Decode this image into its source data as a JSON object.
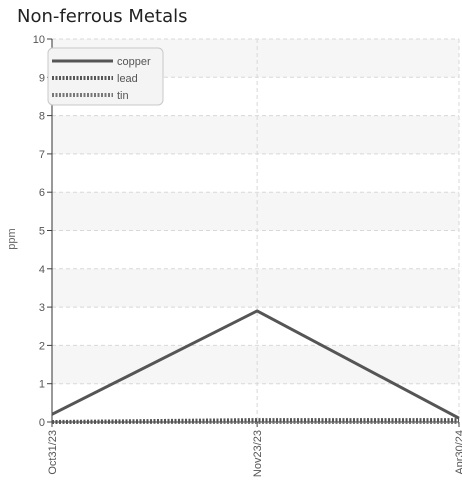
{
  "chart_data": {
    "type": "line",
    "title": "Non-ferrous Metals",
    "xlabel": "",
    "ylabel": "ppm",
    "x": [
      "Oct31/23",
      "Nov23/23",
      "Apr30/24"
    ],
    "ylim": [
      0,
      10
    ],
    "yticks": [
      "0",
      "1",
      "2",
      "3",
      "4",
      "5",
      "6",
      "7",
      "8",
      "9",
      "10"
    ],
    "grid": true,
    "legend_position": "top-left",
    "series": [
      {
        "name": "copper",
        "values": [
          0.2,
          2.9,
          0.1
        ],
        "color": "#555555",
        "style": "solid"
      },
      {
        "name": "lead",
        "values": [
          0.0,
          0.05,
          0.05
        ],
        "color": "#555555",
        "style": "dotted"
      },
      {
        "name": "tin",
        "values": [
          0.0,
          0.0,
          0.0
        ],
        "color": "#777777",
        "style": "dotted"
      }
    ]
  }
}
